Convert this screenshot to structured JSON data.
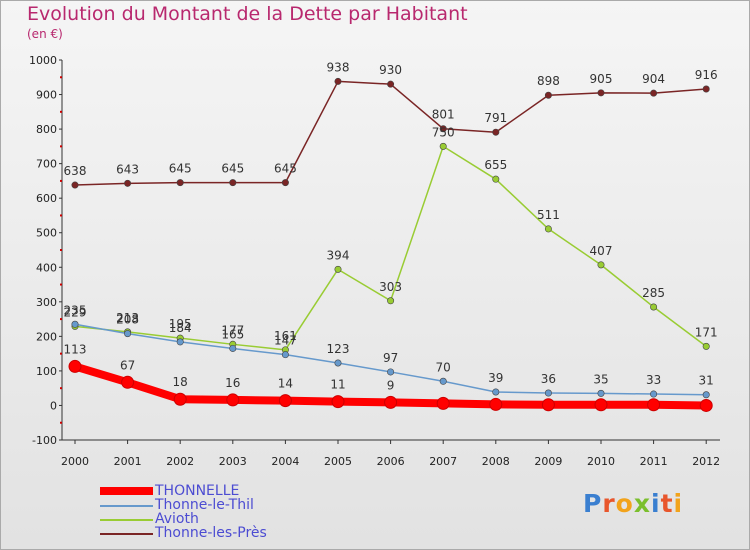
{
  "header": {
    "title": "Evolution du Montant de la Dette par Habitant",
    "unit": "(en €)"
  },
  "logo": {
    "text": "Proxiti",
    "letter_colors": [
      "#3a7fd0",
      "#e8562c",
      "#f2a31b",
      "#7bbf2d",
      "#3a7fd0",
      "#e8562c",
      "#f2a31b"
    ]
  },
  "chart_data": {
    "type": "line",
    "x": [
      "2000",
      "2001",
      "2002",
      "2003",
      "2004",
      "2005",
      "2006",
      "2007",
      "2008",
      "2009",
      "2010",
      "2011",
      "2012"
    ],
    "ylim": [
      -100,
      1000
    ],
    "yticks": [
      -100,
      0,
      100,
      200,
      300,
      400,
      500,
      600,
      700,
      800,
      900,
      1000
    ],
    "grid": false,
    "legend_position": "bottom-left",
    "series": [
      {
        "name": "THONNELLE",
        "color": "#ff0000",
        "values": [
          113,
          67,
          18,
          16,
          14,
          11,
          9,
          6,
          3,
          2,
          2,
          2,
          0
        ],
        "labels": [
          "113",
          "67",
          "18",
          "16",
          "14",
          "11",
          "9",
          "",
          "",
          "",
          "",
          "",
          ""
        ]
      },
      {
        "name": "Thonne-le-Thil",
        "color": "#6699cc",
        "values": [
          235,
          208,
          184,
          165,
          147,
          123,
          97,
          70,
          39,
          36,
          35,
          33,
          31
        ],
        "labels": [
          "235",
          "208",
          "184",
          "165",
          "147",
          "123",
          "97",
          "70",
          "39",
          "36",
          "35",
          "33",
          "31"
        ]
      },
      {
        "name": "Avioth",
        "color": "#99cc33",
        "values": [
          229,
          213,
          195,
          177,
          161,
          394,
          303,
          750,
          655,
          511,
          407,
          285,
          171
        ],
        "labels": [
          "229",
          "213",
          "195",
          "177",
          "161",
          "394",
          "303",
          "750",
          "655",
          "511",
          "407",
          "285",
          "171"
        ]
      },
      {
        "name": "Thonne-les-Près",
        "color": "#7a2525",
        "values": [
          638,
          643,
          645,
          645,
          645,
          938,
          930,
          801,
          791,
          898,
          905,
          904,
          916
        ],
        "labels": [
          "638",
          "643",
          "645",
          "645",
          "645",
          "938",
          "930",
          "801",
          "791",
          "898",
          "905",
          "904",
          "916"
        ]
      }
    ]
  }
}
